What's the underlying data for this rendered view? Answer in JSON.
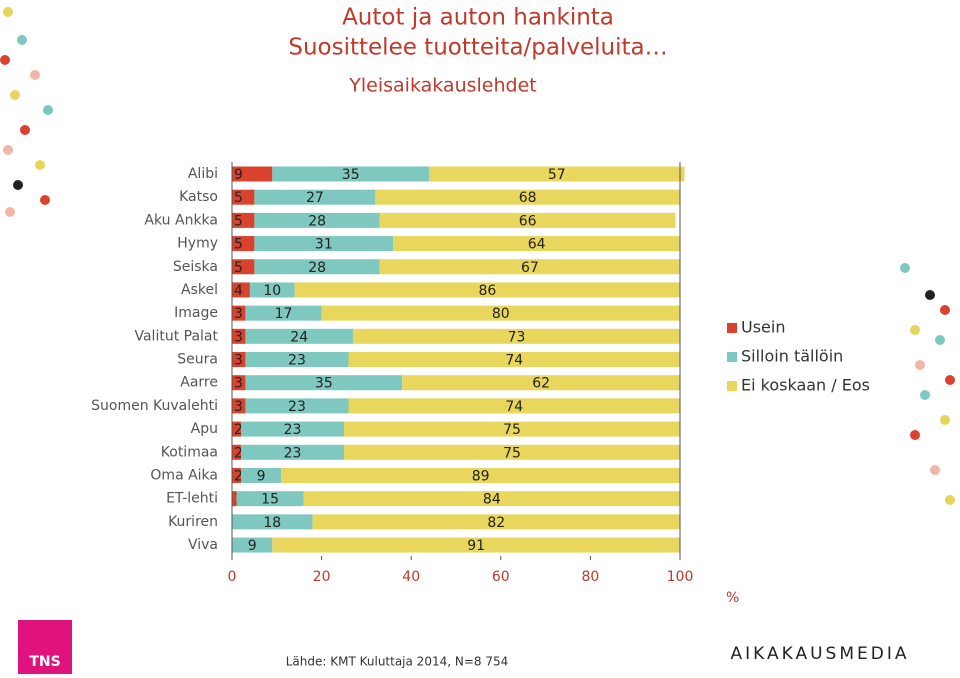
{
  "chart_data": {
    "type": "stacked-bar-horizontal",
    "title": "Autot ja auton hankinta",
    "subtitle": "Suosittelee tuotteita/palveluita…",
    "annotations": [
      "Yleisaikakauslehdet"
    ],
    "x_label": "%",
    "categories": [
      "Alibi",
      "Katso",
      "Aku Ankka",
      "Hymy",
      "Seiska",
      "Askel",
      "Image",
      "Valitut Palat",
      "Seura",
      "Aarre",
      "Suomen Kuvalehti",
      "Apu",
      "Kotimaa",
      "Oma Aika",
      "ET-lehti",
      "Kuriren",
      "Viva"
    ],
    "series": [
      {
        "name": "Usein",
        "color": "#d9432e",
        "values": [
          9,
          5,
          5,
          5,
          5,
          4,
          3,
          3,
          3,
          3,
          3,
          2,
          2,
          2,
          1,
          0,
          0
        ]
      },
      {
        "name": "Silloin tällöin",
        "color": "#7ec8bf",
        "values": [
          35,
          27,
          28,
          31,
          28,
          10,
          17,
          24,
          23,
          35,
          23,
          23,
          23,
          9,
          15,
          18,
          9
        ]
      },
      {
        "name": "Ei koskaan / Eos",
        "color": "#e9d65c",
        "values": [
          57,
          68,
          66,
          64,
          67,
          86,
          80,
          73,
          74,
          62,
          74,
          75,
          75,
          89,
          84,
          82,
          91
        ]
      }
    ],
    "xlim": [
      0,
      100
    ],
    "xticks": [
      0,
      20,
      40,
      60,
      80,
      100
    ],
    "legend": "right"
  },
  "source": "Lähde: KMT Kuluttaja 2014, N=8 754",
  "logos": [
    "TNS",
    "AIKAKAUSMEDIA"
  ]
}
